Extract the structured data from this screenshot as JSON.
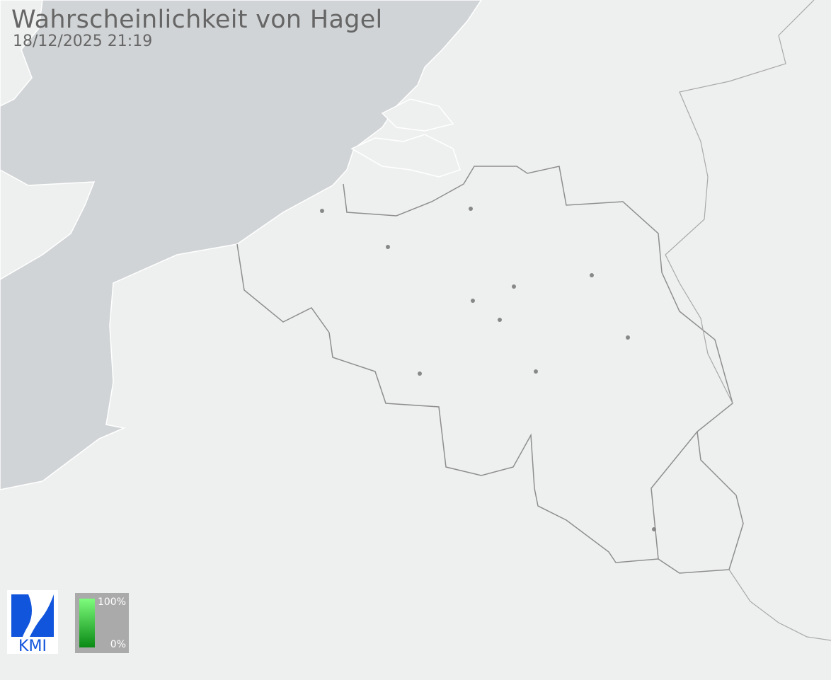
{
  "title": "Wahrscheinlichkeit von Hagel",
  "timestamp": "18/12/2025 21:19",
  "legend": {
    "max_label": "100%",
    "min_label": "0%",
    "colors": {
      "top": "#7dfc7d",
      "bottom": "#0a8a14"
    }
  },
  "logo": {
    "text": "KMI",
    "color": "#1155dd"
  },
  "colors": {
    "sea": "#d1d4d6",
    "land": "#eef0ef",
    "border": "#8e8e8e",
    "city": "#888888"
  }
}
